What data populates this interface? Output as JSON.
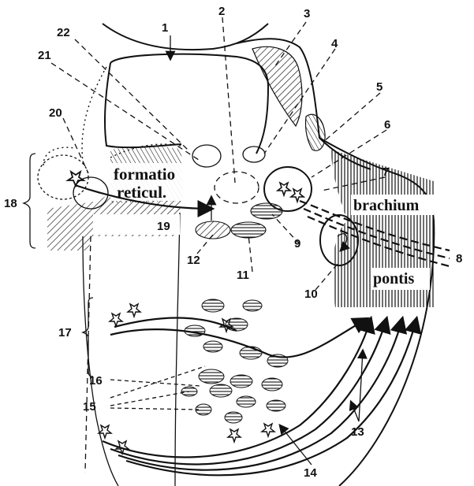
{
  "labels": {
    "n1": "1",
    "n2": "2",
    "n3": "3",
    "n4": "4",
    "n5": "5",
    "n6": "6",
    "n7": "7",
    "n8": "8",
    "n9": "9",
    "n10": "10",
    "n11": "11",
    "n12": "12",
    "n13": "13",
    "n14": "14",
    "n15": "15",
    "n16": "16",
    "n17": "17",
    "n18": "18",
    "n19": "19",
    "n20": "20",
    "n21": "21",
    "n22": "22"
  },
  "regions": {
    "formatio_line1": "formatio",
    "formatio_line2": "reticul.",
    "brachium": "brachium",
    "pontis": "pontis"
  }
}
